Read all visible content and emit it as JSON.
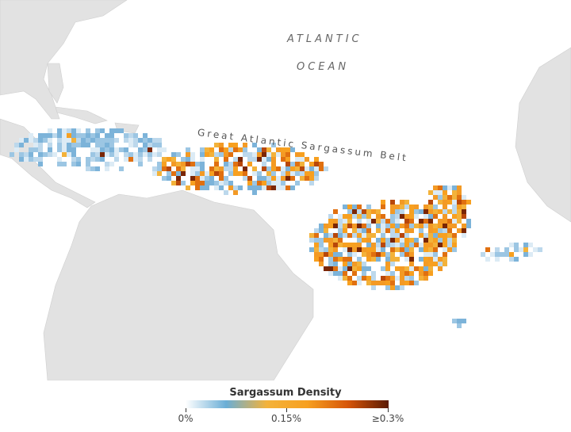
{
  "map": {
    "labels": {
      "ocean_line1": "ATLANTIC",
      "ocean_line2": "OCEAN",
      "belt": "Great Atlantic Sargassum Belt"
    },
    "land_color": "#e2e2e2",
    "water_color": "#ffffff"
  },
  "legend": {
    "title": "Sargassum Density",
    "ticks": [
      "0%",
      "0.15%",
      "≥0.3%"
    ],
    "colors": [
      "#ffffff",
      "#6aaed6",
      "#f3b23a",
      "#f7a020",
      "#d65508",
      "#5a1a04"
    ]
  }
}
